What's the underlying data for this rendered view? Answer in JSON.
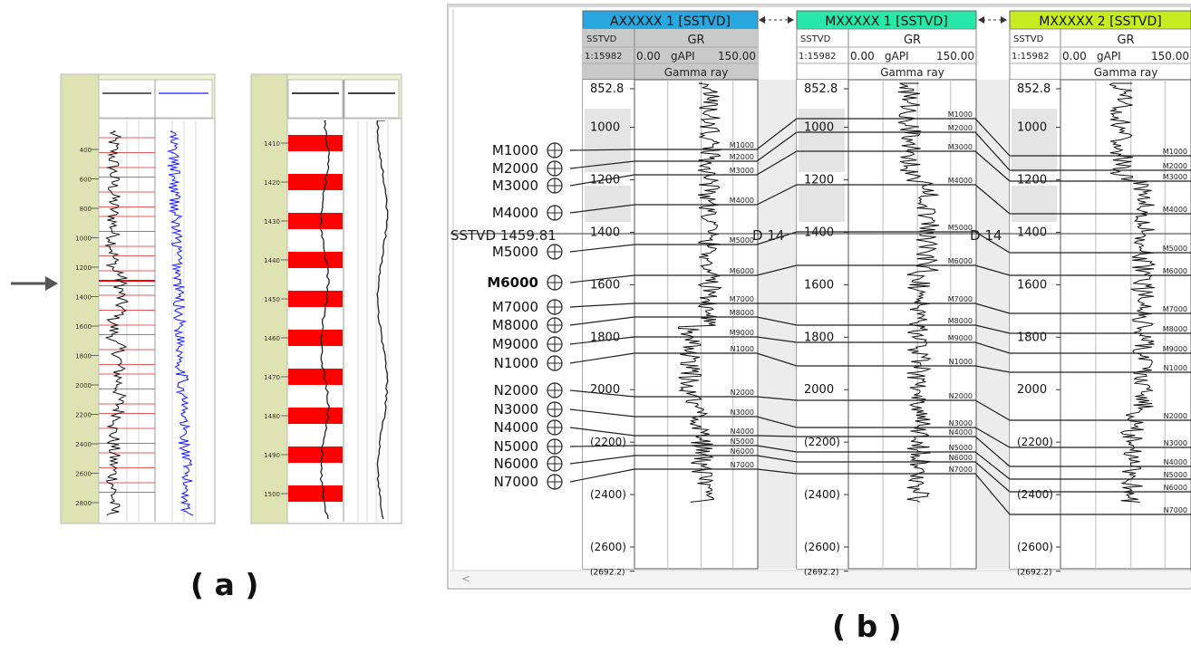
{
  "captions": {
    "a": "( a )",
    "b": "( b )"
  },
  "panel_a": {
    "track1": {
      "ticks": [
        "400",
        "600",
        "800",
        "1000",
        "1200",
        "1400",
        "1600",
        "1800",
        "2000",
        "2200",
        "2400",
        "2600",
        "2800"
      ]
    },
    "track2": {
      "ticks": [
        "1410",
        "1420",
        "1430",
        "1440",
        "1450",
        "1460",
        "1470",
        "1480",
        "1490",
        "1500"
      ]
    }
  },
  "panel_b": {
    "wells": [
      {
        "name": "AXXXXX 1 [SSTVD]",
        "color": "#29a8e0"
      },
      {
        "name": "MXXXXX 1 [SSTVD]",
        "color": "#27e8a8"
      },
      {
        "name": "MXXXXX 2 [SSTVD]",
        "color": "#c8ec22"
      }
    ],
    "depth_label": "SSTVD",
    "scale": "1:15982",
    "log_name": "GR",
    "log_min": "0.00",
    "log_unit": "gAPI",
    "log_max": "150.00",
    "log_title": "Gamma ray",
    "depths": [
      "852.8",
      "1000",
      "1200",
      "1400",
      "1600",
      "1800",
      "2000",
      "(2200)",
      "(2400)",
      "(2600)",
      "(2692.2)"
    ],
    "cursor_label": "SSTVD 1459.81",
    "cursor_fragments": [
      "D 14",
      "D 14"
    ],
    "markers": [
      "M1000",
      "M2000",
      "M3000",
      "M4000",
      "M5000",
      "M6000",
      "M7000",
      "M8000",
      "M9000",
      "N1000",
      "N2000",
      "N3000",
      "N4000",
      "N5000",
      "N6000",
      "N7000"
    ],
    "scrollbar_arrow": "<"
  }
}
